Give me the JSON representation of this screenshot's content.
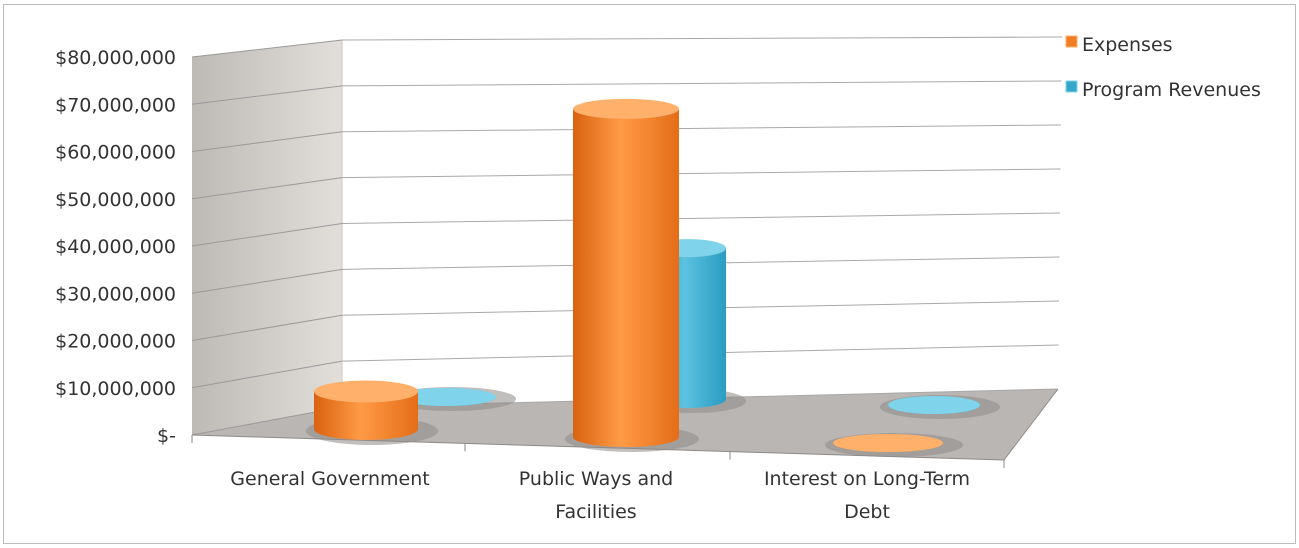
{
  "chart_data": {
    "type": "bar",
    "categories": [
      "General Government",
      "Public Ways and Facilities",
      "Interest on Long-Term Debt"
    ],
    "series": [
      {
        "name": "Expenses",
        "values": [
          8000000,
          70000000,
          0
        ]
      },
      {
        "name": "Program Revenues",
        "values": [
          0,
          34000000,
          0
        ]
      }
    ],
    "yticks": [
      "$-",
      "$10,000,000",
      "$20,000,000",
      "$30,000,000",
      "$40,000,000",
      "$50,000,000",
      "$60,000,000",
      "$70,000,000",
      "$80,000,000"
    ],
    "ylim": [
      0,
      80000000
    ],
    "grid": true,
    "legend_position": "top-right",
    "colors": {
      "Expenses": "#f07e26",
      "Program Revenues": "#35a8cc",
      "wall": "#d7d4d0",
      "floor": "#b8b5b2"
    }
  }
}
